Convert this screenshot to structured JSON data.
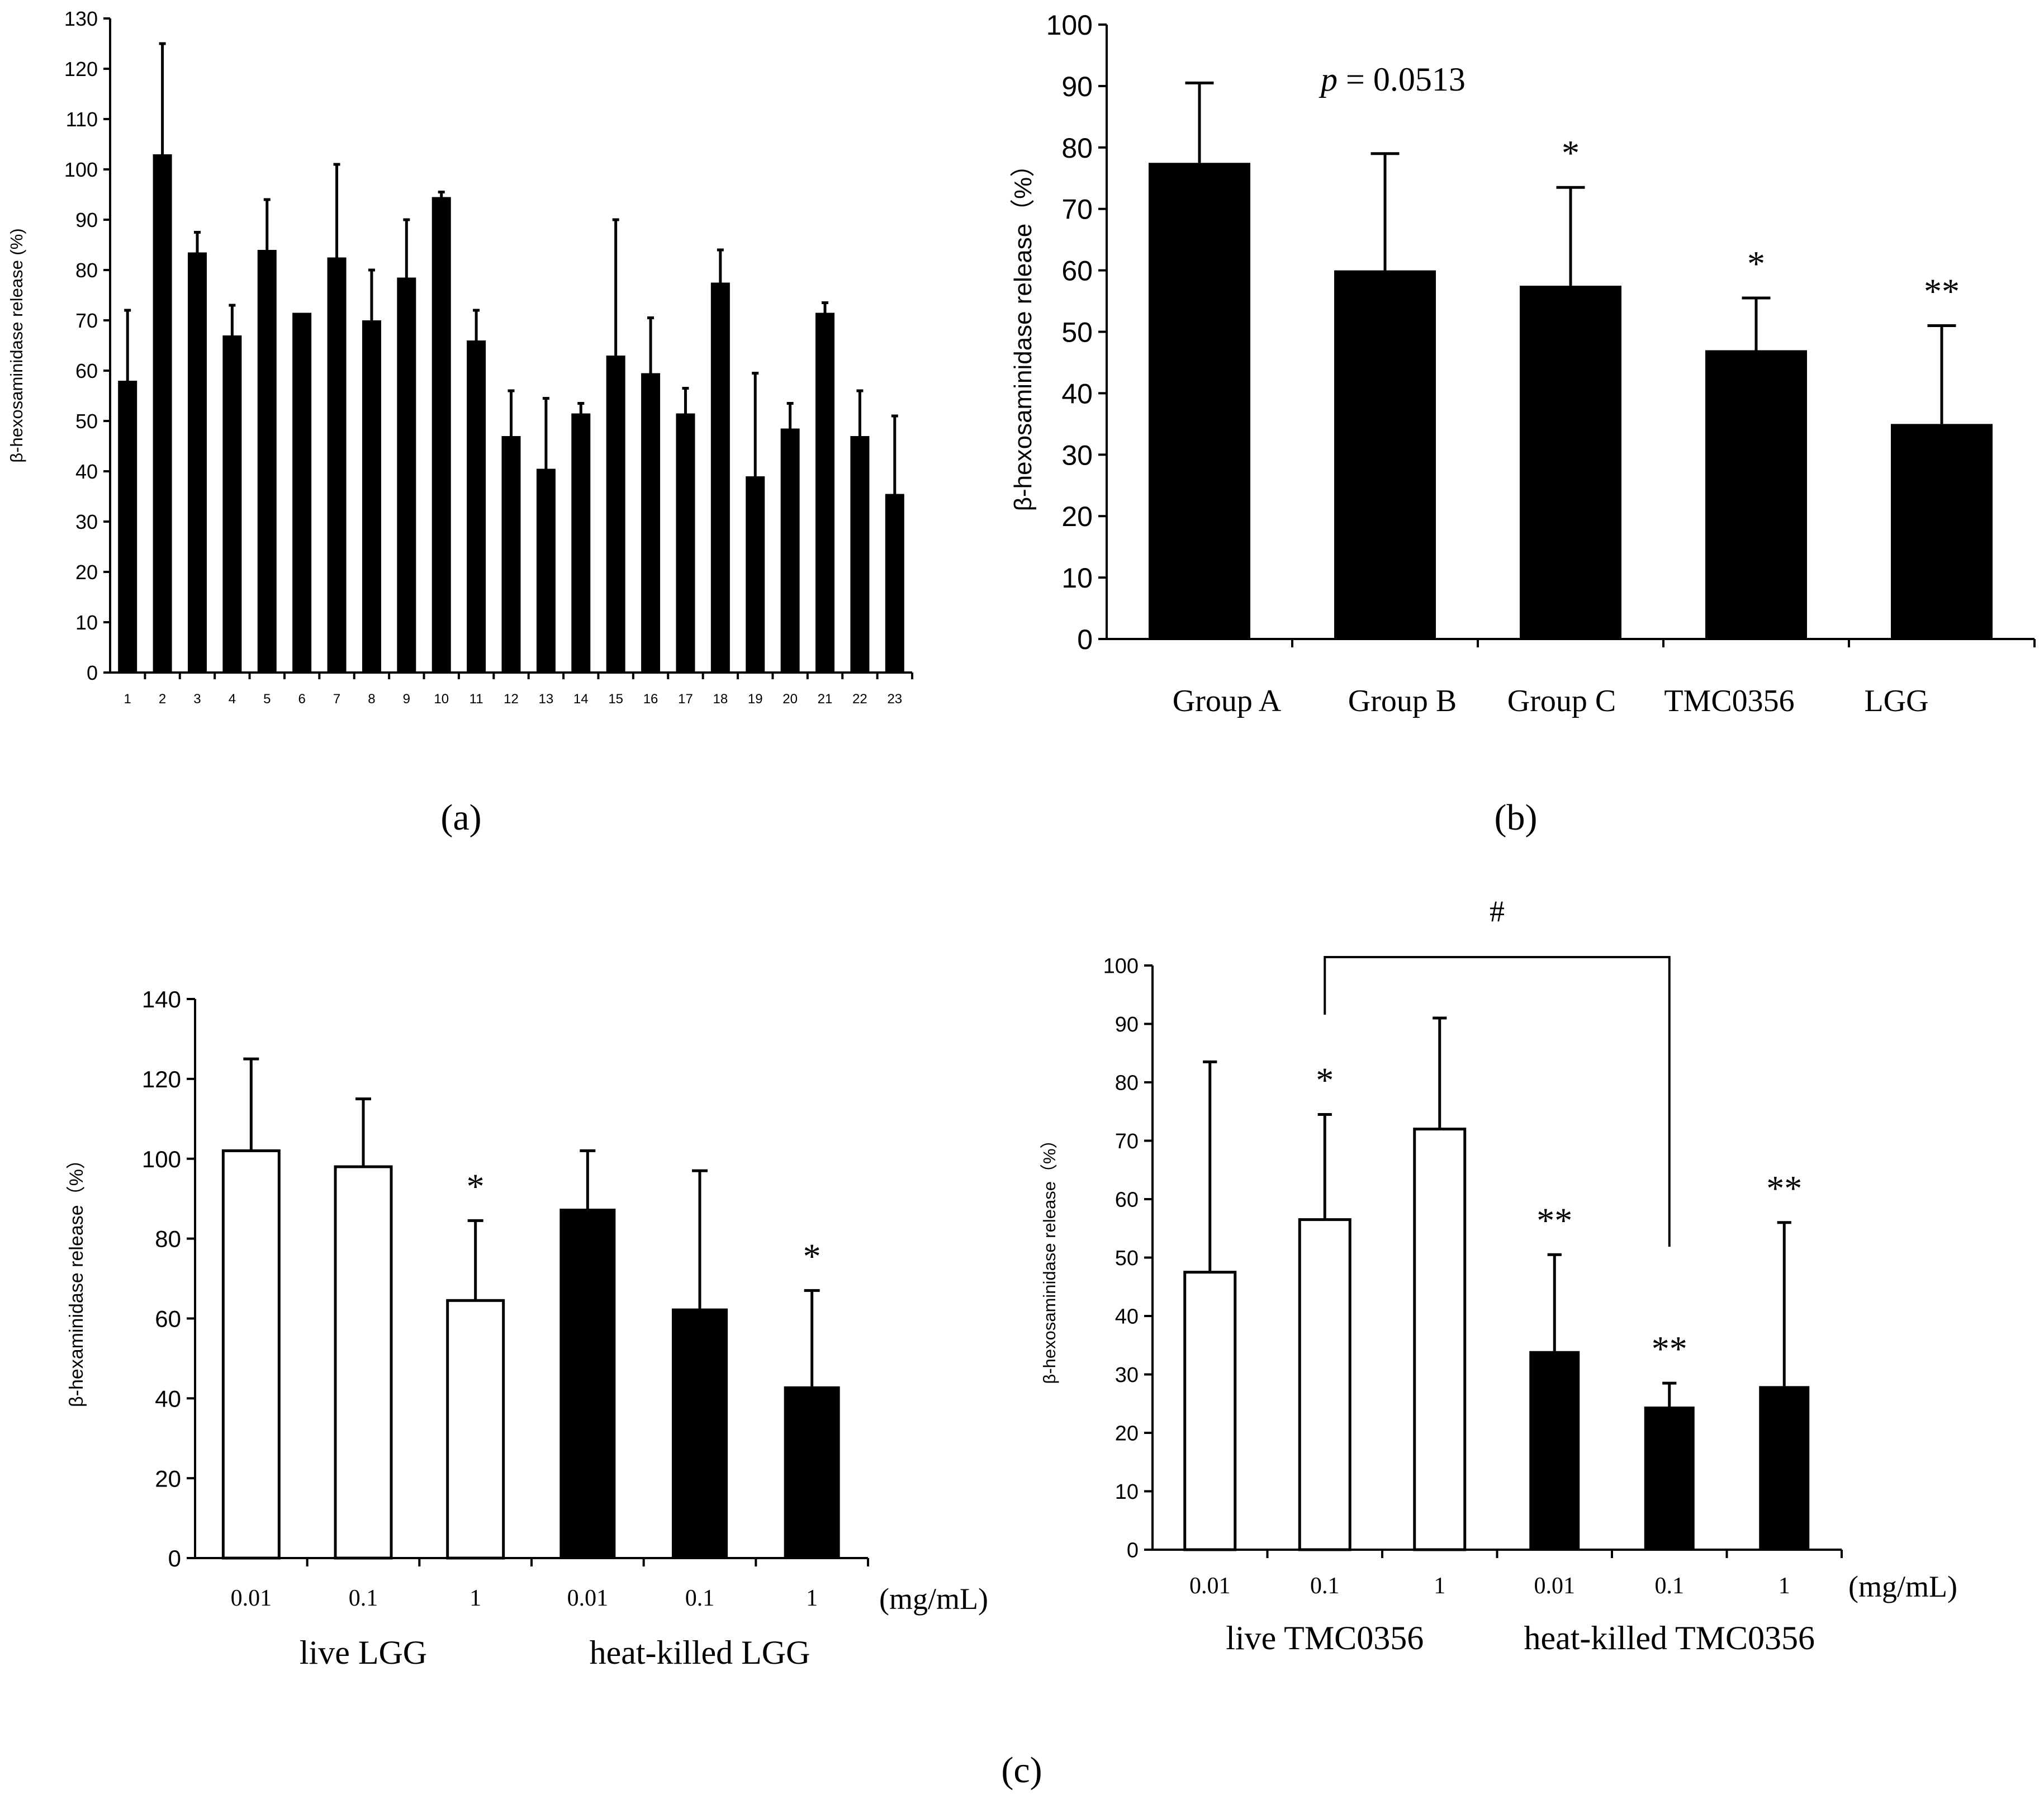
{
  "panel_labels": {
    "a": "(a)",
    "b": "(b)",
    "c": "(c)"
  },
  "chart_data": [
    {
      "id": "a",
      "type": "bar",
      "title": "",
      "xlabel": "",
      "ylabel": "β-hexosaminidase release (%)",
      "ylim": [
        0,
        130
      ],
      "yticks": [
        0,
        10,
        20,
        30,
        40,
        50,
        60,
        70,
        80,
        90,
        100,
        110,
        120,
        130
      ],
      "categories": [
        "1",
        "2",
        "3",
        "4",
        "5",
        "6",
        "7",
        "8",
        "9",
        "10",
        "11",
        "12",
        "13",
        "14",
        "15",
        "16",
        "17",
        "18",
        "19",
        "20",
        "21",
        "22",
        "23"
      ],
      "values": [
        58,
        103,
        83.5,
        67,
        84,
        71.5,
        82.5,
        70,
        78.5,
        94.5,
        66,
        47,
        40.5,
        51.5,
        63,
        59.5,
        51.5,
        77.5,
        39,
        48.5,
        71.5,
        47,
        35.5
      ],
      "errors": [
        14,
        22,
        4,
        6,
        10,
        0,
        18.5,
        10,
        11.5,
        1,
        6,
        9,
        14,
        2,
        27,
        11,
        5,
        6.5,
        20.5,
        5,
        2,
        9,
        15.5
      ],
      "fills": [
        "black",
        "black",
        "black",
        "black",
        "black",
        "black",
        "black",
        "black",
        "black",
        "black",
        "black",
        "black",
        "black",
        "black",
        "black",
        "black",
        "black",
        "black",
        "black",
        "black",
        "black",
        "black",
        "black"
      ],
      "annotations": []
    },
    {
      "id": "b",
      "type": "bar",
      "title": "",
      "xlabel": "",
      "ylabel": "β-hexosaminidase release（%）",
      "ylim": [
        0,
        100
      ],
      "yticks": [
        0,
        10,
        20,
        30,
        40,
        50,
        60,
        70,
        80,
        90,
        100
      ],
      "categories": [
        "Group A",
        "Group B",
        "Group C",
        "TMC0356",
        "LGG"
      ],
      "values": [
        77.5,
        60,
        57.5,
        47,
        35
      ],
      "errors": [
        13,
        19,
        16,
        8.5,
        16
      ],
      "fills": [
        "black",
        "black",
        "black",
        "black",
        "black"
      ],
      "stars": [
        "",
        "",
        "*",
        "*",
        "**"
      ],
      "annotation_p": {
        "label": "p",
        "text": " = 0.0513"
      }
    },
    {
      "id": "c1",
      "type": "bar",
      "title": "",
      "ylabel": "β-hexaminidase release（%）",
      "xunit": "(mg/mL)",
      "ylim": [
        0,
        140
      ],
      "yticks": [
        0,
        20,
        40,
        60,
        80,
        100,
        120,
        140
      ],
      "categories": [
        "0.01",
        "0.1",
        "1",
        "0.01",
        "0.1",
        "1"
      ],
      "values": [
        102,
        98,
        64.5,
        87.5,
        62.5,
        43
      ],
      "errors": [
        23,
        17,
        20,
        14.5,
        34.5,
        24
      ],
      "fills": [
        "white",
        "white",
        "white",
        "black",
        "black",
        "black"
      ],
      "stars": [
        "",
        "",
        "*",
        "",
        "",
        "*"
      ],
      "group_labels": [
        "live LGG",
        "heat-killed LGG"
      ]
    },
    {
      "id": "c2",
      "type": "bar",
      "title": "",
      "ylabel": "β-hexosaminidase release（%）",
      "xunit": "(mg/mL)",
      "ylim": [
        0,
        100
      ],
      "yticks": [
        0,
        10,
        20,
        30,
        40,
        50,
        60,
        70,
        80,
        90,
        100
      ],
      "categories": [
        "0.01",
        "0.1",
        "1",
        "0.01",
        "0.1",
        "1"
      ],
      "values": [
        47.5,
        56.5,
        72,
        34,
        24.5,
        28
      ],
      "errors": [
        36,
        18,
        19,
        16.5,
        4,
        28
      ],
      "fills": [
        "white",
        "white",
        "white",
        "black",
        "black",
        "black"
      ],
      "stars": [
        "",
        "*",
        "",
        "**",
        "**",
        "**"
      ],
      "group_labels": [
        "live TMC0356",
        "heat-killed TMC0356"
      ],
      "bracket_label": "#"
    }
  ]
}
